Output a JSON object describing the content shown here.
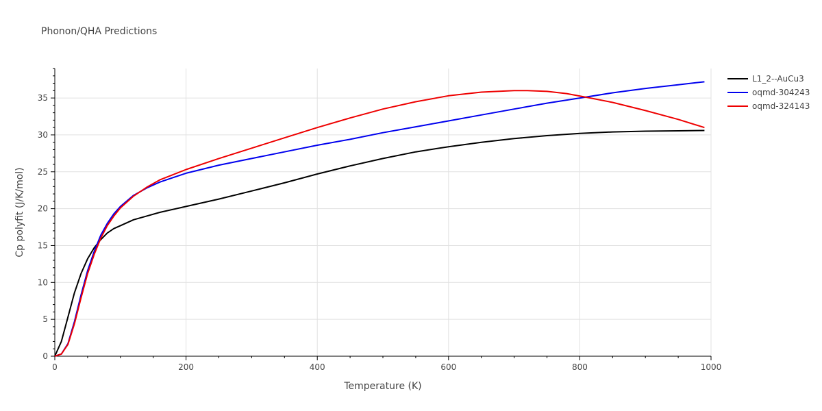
{
  "chart_data": {
    "type": "line",
    "title": "Phonon/QHA Predictions",
    "xlabel": "Temperature (K)",
    "ylabel": "Cp polyfit (J/K/mol)",
    "xlim": [
      0,
      1000
    ],
    "ylim": [
      0,
      39
    ],
    "xticks": [
      0,
      200,
      400,
      600,
      800,
      1000
    ],
    "yticks": [
      0,
      5,
      10,
      15,
      20,
      25,
      30,
      35
    ],
    "grid": true,
    "legend": "top-right",
    "series": [
      {
        "name": "L1_2--AuCu3",
        "color": "#000000",
        "x": [
          0,
          10,
          20,
          30,
          40,
          50,
          60,
          70,
          80,
          90,
          100,
          120,
          140,
          160,
          200,
          250,
          300,
          350,
          400,
          450,
          500,
          550,
          600,
          650,
          700,
          750,
          800,
          850,
          900,
          950,
          990
        ],
        "y": [
          0,
          2.0,
          5.3,
          8.6,
          11.2,
          13.2,
          14.7,
          15.8,
          16.7,
          17.3,
          17.7,
          18.5,
          19.0,
          19.5,
          20.3,
          21.3,
          22.4,
          23.5,
          24.7,
          25.8,
          26.8,
          27.7,
          28.4,
          29.0,
          29.5,
          29.9,
          30.2,
          30.4,
          30.5,
          30.55,
          30.6
        ]
      },
      {
        "name": "oqmd-304243",
        "color": "#0000ee",
        "x": [
          0,
          10,
          20,
          30,
          40,
          50,
          60,
          70,
          80,
          90,
          100,
          120,
          140,
          160,
          200,
          250,
          300,
          350,
          400,
          450,
          500,
          550,
          600,
          650,
          700,
          750,
          800,
          850,
          900,
          950,
          990
        ],
        "y": [
          0,
          0.3,
          1.7,
          4.7,
          8.3,
          11.6,
          14.2,
          16.4,
          18.0,
          19.3,
          20.3,
          21.8,
          22.8,
          23.6,
          24.8,
          25.9,
          26.8,
          27.7,
          28.6,
          29.4,
          30.3,
          31.1,
          31.9,
          32.7,
          33.5,
          34.3,
          35.0,
          35.7,
          36.3,
          36.8,
          37.2
        ]
      },
      {
        "name": "oqmd-324143",
        "color": "#ee0000",
        "x": [
          0,
          10,
          20,
          30,
          40,
          50,
          60,
          70,
          80,
          90,
          100,
          120,
          140,
          160,
          200,
          250,
          300,
          350,
          400,
          450,
          500,
          550,
          600,
          650,
          700,
          720,
          750,
          780,
          810,
          850,
          900,
          950,
          990
        ],
        "y": [
          0,
          0.3,
          1.6,
          4.4,
          7.9,
          11.2,
          13.8,
          16.0,
          17.7,
          19.0,
          20.1,
          21.7,
          22.9,
          23.9,
          25.3,
          26.8,
          28.2,
          29.6,
          31.0,
          32.3,
          33.5,
          34.5,
          35.3,
          35.8,
          36.0,
          36.0,
          35.9,
          35.6,
          35.1,
          34.4,
          33.3,
          32.1,
          31.0
        ]
      }
    ]
  }
}
